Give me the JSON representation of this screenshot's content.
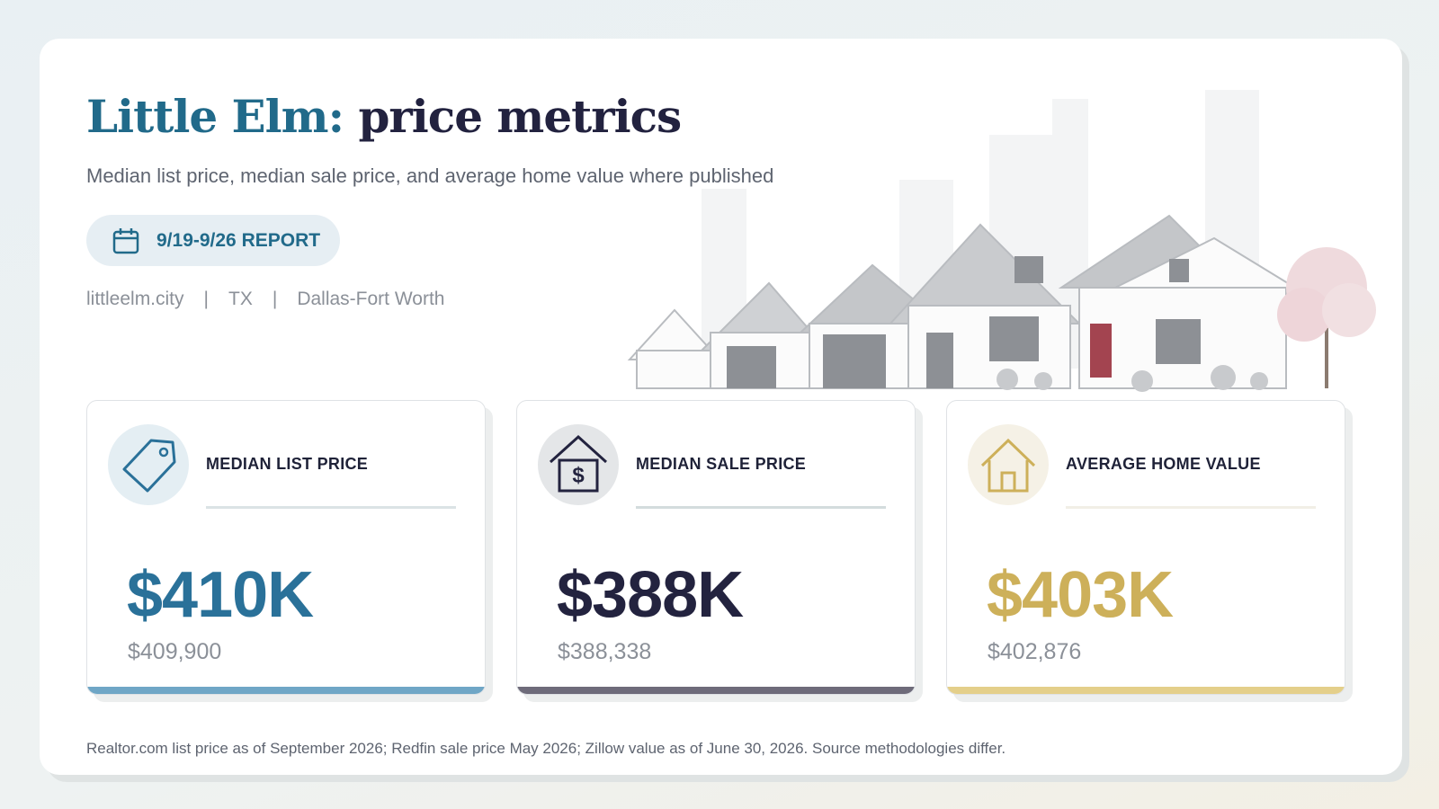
{
  "header": {
    "title_place": "Little Elm:",
    "title_rest": "price metrics",
    "subtitle": "Median list price, median sale price, and average home value where published",
    "badge": "9/19-9/26 REPORT",
    "meta": [
      "littleelm.city",
      "TX",
      "Dallas-Fort Worth"
    ],
    "separator": "|"
  },
  "cards": [
    {
      "label": "MEDIAN LIST PRICE",
      "value": "$410K",
      "exact": "$409,900"
    },
    {
      "label": "MEDIAN SALE PRICE",
      "value": "$388K",
      "exact": "$388,338"
    },
    {
      "label": "AVERAGE HOME VALUE",
      "value": "$403K",
      "exact": "$402,876"
    }
  ],
  "footnote": "Realtor.com list price as of September 2026; Redfin sale price May 2026; Zillow value as of June 30, 2026. Source methodologies differ."
}
